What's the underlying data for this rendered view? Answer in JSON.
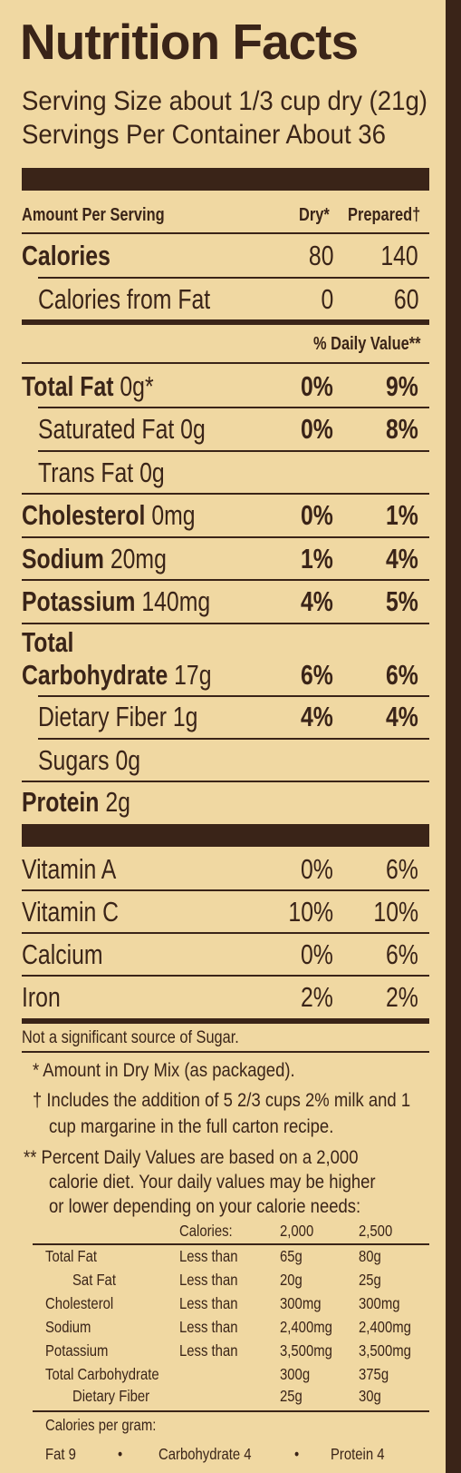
{
  "title": "Nutrition Facts",
  "serving_size": "Serving Size about 1/3 cup dry (21g)",
  "servings_per_container": "Servings Per Container About 36",
  "header": {
    "amount_per_serving": "Amount Per Serving",
    "dry": "Dry*",
    "prepared": "Prepared†"
  },
  "calories": {
    "label": "Calories",
    "dry": "80",
    "prepared": "140"
  },
  "calories_from_fat": {
    "label": "Calories from Fat",
    "dry": "0",
    "prepared": "60"
  },
  "daily_value_header": "% Daily Value**",
  "nutrients": {
    "total_fat": {
      "name": "Total Fat",
      "amount": " 0g*",
      "dry": "0%",
      "prepared": "9%"
    },
    "saturated_fat": {
      "name": "Saturated Fat 0g",
      "dry": "0%",
      "prepared": "8%"
    },
    "trans_fat": {
      "name": "Trans Fat 0g"
    },
    "cholesterol": {
      "name": "Cholesterol",
      "amount": " 0mg",
      "dry": "0%",
      "prepared": "1%"
    },
    "sodium": {
      "name": "Sodium",
      "amount": " 20mg",
      "dry": "1%",
      "prepared": "4%"
    },
    "potassium": {
      "name": "Potassium",
      "amount": " 140mg",
      "dry": "4%",
      "prepared": "5%"
    },
    "total_carb": {
      "name_line1": "Total",
      "name_line2": "Carbohydrate",
      "amount": " 17g",
      "dry": "6%",
      "prepared": "6%"
    },
    "dietary_fiber": {
      "name": "Dietary Fiber 1g",
      "dry": "4%",
      "prepared": "4%"
    },
    "sugars": {
      "name": "Sugars 0g"
    },
    "protein": {
      "name": "Protein",
      "amount": " 2g"
    }
  },
  "vitamins": [
    {
      "name": "Vitamin A",
      "dry": "0%",
      "prepared": "6%"
    },
    {
      "name": "Vitamin C",
      "dry": "10%",
      "prepared": "10%"
    },
    {
      "name": "Calcium",
      "dry": "0%",
      "prepared": "6%"
    },
    {
      "name": "Iron",
      "dry": "2%",
      "prepared": "2%"
    }
  ],
  "notes": {
    "sugar": "Not a significant source of Sugar.",
    "dry_mix": "* Amount in Dry Mix (as packaged).",
    "prepared_l1": "† Includes the addition of 5 2/3 cups 2% milk and 1",
    "prepared_l2": "cup margarine in the full carton recipe.",
    "dv_l1": "** Percent Daily Values are based on a 2,000",
    "dv_l2": "calorie  diet. Your daily values may be higher",
    "dv_l3": "or lower depending on your calorie needs:"
  },
  "dv_table": {
    "header": {
      "label": "Calories:",
      "c2000": "2,000",
      "c2500": "2,500"
    },
    "rows": [
      {
        "nutrient": "Total Fat",
        "qual": "Less than",
        "c2000": "65g",
        "c2500": "80g"
      },
      {
        "nutrient": "Sat Fat",
        "qual": "Less than",
        "c2000": "20g",
        "c2500": "25g"
      },
      {
        "nutrient": "Cholesterol",
        "qual": "Less than",
        "c2000": "300mg",
        "c2500": "300mg"
      },
      {
        "nutrient": "Sodium",
        "qual": "Less than",
        "c2000": "2,400mg",
        "c2500": "2,400mg"
      },
      {
        "nutrient": "Potassium",
        "qual": "Less than",
        "c2000": "3,500mg",
        "c2500": "3,500mg"
      },
      {
        "nutrient": "Total Carbohydrate",
        "qual": "",
        "c2000": "300g",
        "c2500": "375g"
      },
      {
        "nutrient": "Dietary Fiber",
        "qual": "",
        "c2000": "25g",
        "c2500": "30g"
      }
    ]
  },
  "calories_per_gram": {
    "label": "Calories per gram:",
    "fat": "Fat 9",
    "carb": "Carbohydrate 4",
    "protein": "Protein 4",
    "bullet": "•"
  },
  "colors": {
    "background": "#f0d8a2",
    "ink": "#3a2418"
  }
}
